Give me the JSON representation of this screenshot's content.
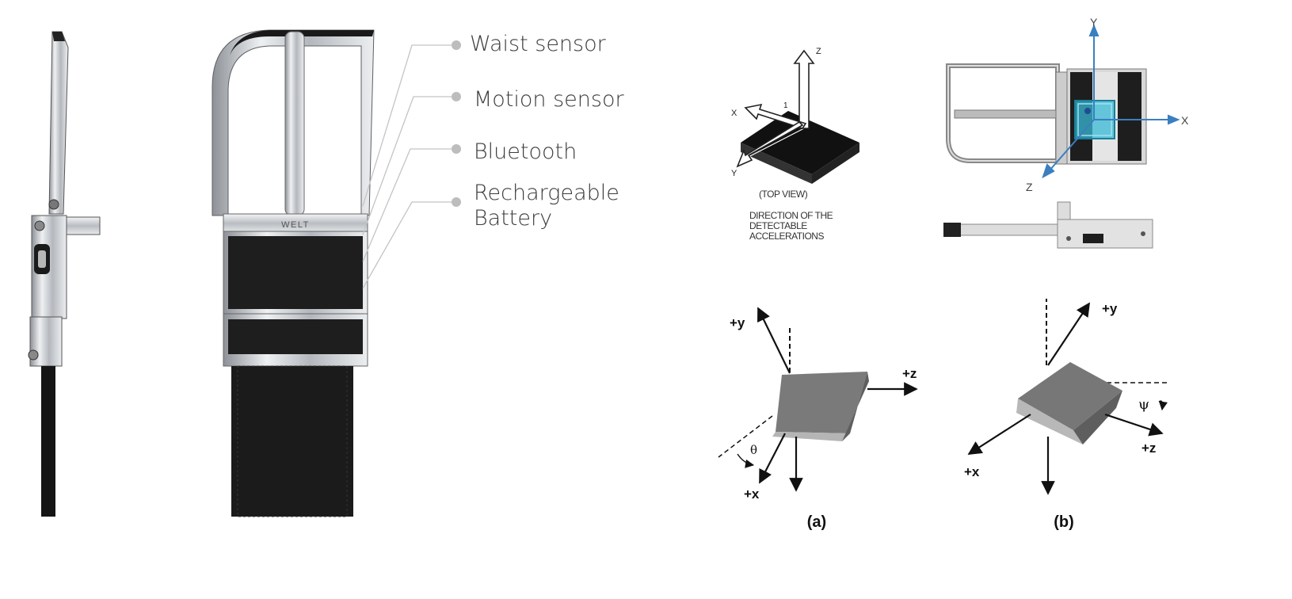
{
  "callouts": {
    "waist_sensor": "Waist sensor",
    "motion_sensor": "Motion sensor",
    "bluetooth": "Bluetooth",
    "battery_line1": "Rechargeable",
    "battery_line2": "Battery"
  },
  "brand": "WELT",
  "chip": {
    "axis_x": "X",
    "axis_y": "Y",
    "axis_z": "Z",
    "axis_one": "1",
    "top_view": "(TOP VIEW)",
    "direction_1": "DIRECTION OF THE",
    "direction_2": "DETECTABLE",
    "direction_3": "ACCELERATIONS"
  },
  "buckle_axes": {
    "x": "X",
    "y": "Y",
    "z": "Z"
  },
  "orient_a": {
    "y": "+y",
    "z": "+z",
    "x": "+x",
    "angle": "θ",
    "caption": "(a)"
  },
  "orient_b": {
    "y": "+y",
    "z": "+z",
    "x": "+x",
    "angle": "ψ",
    "caption": "(b)"
  },
  "colors": {
    "leather": "#1e1e1e",
    "metal": "#c9ccd0",
    "sensor": "#37b8d6",
    "axis_blue": "#3a7fc0",
    "dot": "#bdbdbd"
  }
}
